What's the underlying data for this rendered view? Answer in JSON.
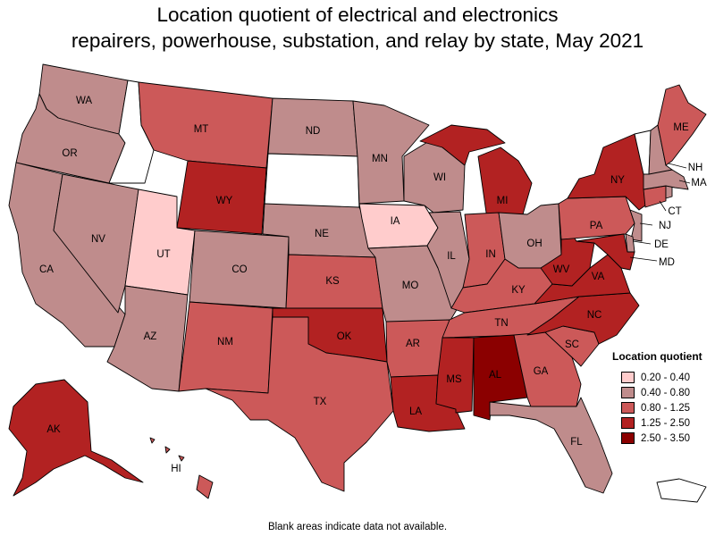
{
  "title_line1": "Location quotient of electrical and electronics",
  "title_line2": "repairers, powerhouse, substation, and relay by state, May 2021",
  "colors": {
    "c1": "#ffcccc",
    "c2": "#bf8c8c",
    "c3": "#cc5959",
    "c4": "#b22222",
    "c5": "#8b0000",
    "na": "#ffffff"
  },
  "legend": {
    "title": "Location quotient",
    "items": [
      {
        "label": "0.20 - 0.40",
        "cls": "c1"
      },
      {
        "label": "0.40 - 0.80",
        "cls": "c2"
      },
      {
        "label": "0.80 - 1.25",
        "cls": "c3"
      },
      {
        "label": "1.25 - 2.50",
        "cls": "c4"
      },
      {
        "label": "2.50 - 3.50",
        "cls": "c5"
      }
    ]
  },
  "states": {
    "WA": "c2",
    "OR": "c2",
    "CA": "c2",
    "NV": "c2",
    "ID": "na",
    "MT": "c3",
    "WY": "c4",
    "UT": "c1",
    "AZ": "c2",
    "CO": "c2",
    "NM": "c3",
    "ND": "c2",
    "SD": "na",
    "NE": "c2",
    "KS": "c3",
    "OK": "c4",
    "TX": "c3",
    "MN": "c2",
    "IA": "c1",
    "MO": "c2",
    "AR": "c3",
    "LA": "c4",
    "WI": "c2",
    "IL": "c2",
    "MI": "c4",
    "IN": "c3",
    "OH": "c2",
    "KY": "c3",
    "TN": "c3",
    "MS": "c4",
    "AL": "c5",
    "GA": "c3",
    "FL": "c2",
    "SC": "c3",
    "NC": "c4",
    "VA": "c4",
    "WV": "c4",
    "PA": "c3",
    "NY": "c4",
    "VT": "na",
    "NH": "c2",
    "ME": "c3",
    "MA": "c2",
    "RI": "c2",
    "CT": "c3",
    "NJ": "c2",
    "DE": "c2",
    "MD": "c4",
    "AK": "c4",
    "HI": "c3",
    "PR": "na"
  },
  "labels": {
    "WA": "WA",
    "OR": "OR",
    "CA": "CA",
    "NV": "NV",
    "MT": "MT",
    "WY": "WY",
    "UT": "UT",
    "AZ": "AZ",
    "CO": "CO",
    "NM": "NM",
    "ND": "ND",
    "NE": "NE",
    "KS": "KS",
    "OK": "OK",
    "TX": "TX",
    "MN": "MN",
    "IA": "IA",
    "MO": "MO",
    "AR": "AR",
    "LA": "LA",
    "WI": "WI",
    "IL": "IL",
    "MI": "MI",
    "IN": "IN",
    "OH": "OH",
    "KY": "KY",
    "TN": "TN",
    "MS": "MS",
    "AL": "AL",
    "GA": "GA",
    "FL": "FL",
    "SC": "SC",
    "NC": "NC",
    "VA": "VA",
    "WV": "WV",
    "PA": "PA",
    "NY": "NY",
    "ME": "ME",
    "NH": "NH",
    "MA": "MA",
    "CT": "CT",
    "NJ": "NJ",
    "DE": "DE",
    "MD": "MD",
    "AK": "AK",
    "HI": "HI"
  },
  "footnote": "Blank areas indicate data not available."
}
